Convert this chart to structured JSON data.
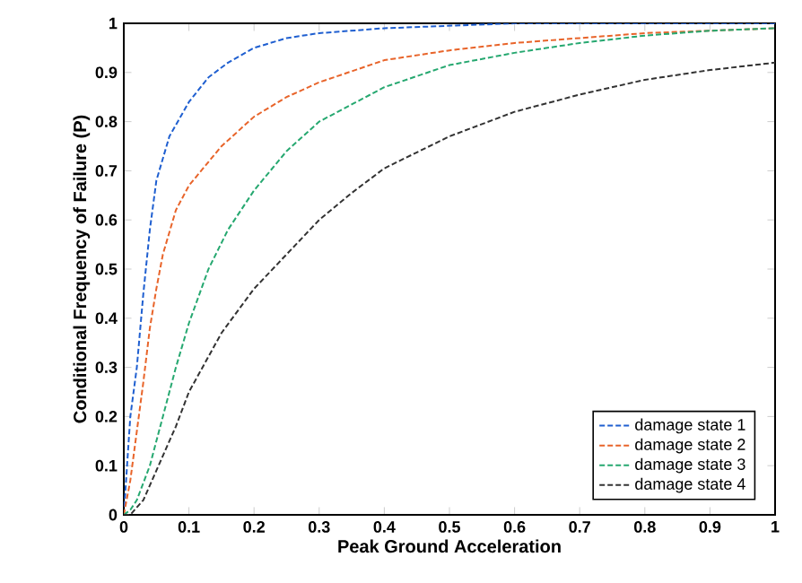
{
  "chart_data": {
    "type": "line",
    "xlabel": "Peak Ground Acceleration",
    "ylabel": "Conditional Frequency of Failure (P)",
    "xlim": [
      0,
      1
    ],
    "ylim": [
      0,
      1
    ],
    "xticks": [
      0,
      0.1,
      0.2,
      0.3,
      0.4,
      0.5,
      0.6,
      0.7,
      0.8,
      0.9,
      1
    ],
    "yticks": [
      0,
      0.1,
      0.2,
      0.3,
      0.4,
      0.5,
      0.6,
      0.7,
      0.8,
      0.9,
      1
    ],
    "grid": false,
    "legend": "bottom right",
    "marker": "none",
    "line_style": "dashed",
    "series": [
      {
        "name": "damage state 1",
        "color": "#1f5fd0",
        "x": [
          0,
          0.01,
          0.02,
          0.03,
          0.04,
          0.05,
          0.07,
          0.1,
          0.13,
          0.16,
          0.2,
          0.25,
          0.3,
          0.4,
          0.6,
          1
        ],
        "values": [
          0,
          0.2,
          0.3,
          0.45,
          0.58,
          0.68,
          0.77,
          0.84,
          0.89,
          0.92,
          0.95,
          0.97,
          0.98,
          0.99,
          1,
          1
        ]
      },
      {
        "name": "damage state 2",
        "color": "#e8642a",
        "x": [
          0,
          0.01,
          0.02,
          0.03,
          0.04,
          0.05,
          0.06,
          0.08,
          0.1,
          0.15,
          0.2,
          0.25,
          0.3,
          0.4,
          0.5,
          0.6,
          0.7,
          0.8,
          0.9,
          1
        ],
        "values": [
          0,
          0.07,
          0.17,
          0.27,
          0.38,
          0.46,
          0.53,
          0.62,
          0.67,
          0.75,
          0.81,
          0.85,
          0.88,
          0.925,
          0.945,
          0.96,
          0.97,
          0.98,
          0.985,
          0.99
        ]
      },
      {
        "name": "damage state 3",
        "color": "#26a870",
        "x": [
          0,
          0.01,
          0.02,
          0.04,
          0.06,
          0.08,
          0.1,
          0.13,
          0.16,
          0.2,
          0.25,
          0.3,
          0.4,
          0.5,
          0.6,
          0.7,
          0.8,
          0.9,
          1
        ],
        "values": [
          0,
          0.01,
          0.03,
          0.1,
          0.2,
          0.3,
          0.39,
          0.5,
          0.58,
          0.66,
          0.74,
          0.8,
          0.87,
          0.915,
          0.94,
          0.96,
          0.975,
          0.985,
          0.99
        ]
      },
      {
        "name": "damage state 4",
        "color": "#333333",
        "x": [
          0,
          0.01,
          0.03,
          0.05,
          0.08,
          0.1,
          0.15,
          0.2,
          0.25,
          0.3,
          0.35,
          0.4,
          0.5,
          0.6,
          0.7,
          0.8,
          0.9,
          1
        ],
        "values": [
          0,
          0,
          0.03,
          0.09,
          0.18,
          0.25,
          0.37,
          0.46,
          0.53,
          0.6,
          0.655,
          0.705,
          0.77,
          0.82,
          0.855,
          0.885,
          0.905,
          0.92
        ]
      }
    ]
  }
}
